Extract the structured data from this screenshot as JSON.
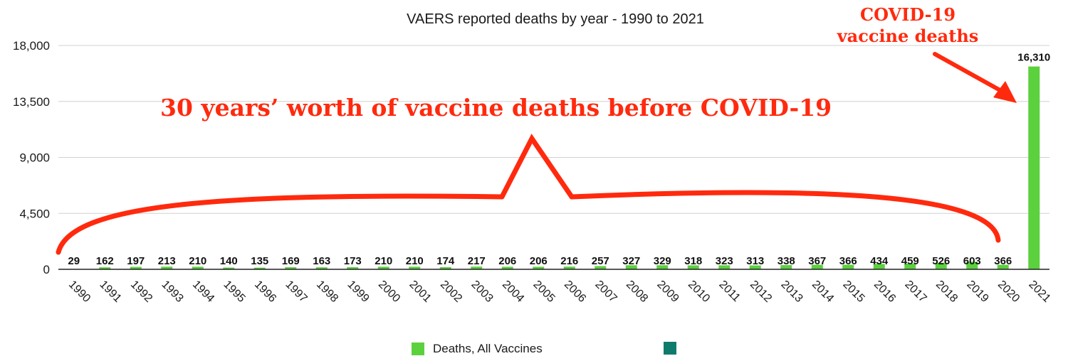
{
  "chart_data": {
    "type": "bar",
    "title": "VAERS reported deaths by year - 1990 to 2021",
    "xlabel": "",
    "ylabel": "",
    "ylim": [
      0,
      18000
    ],
    "yticks": [
      "0",
      "4,500",
      "9,000",
      "13,500",
      "18,000"
    ],
    "ytick_values": [
      0,
      4500,
      9000,
      13500,
      18000
    ],
    "grid": true,
    "categories": [
      "1990",
      "1991",
      "1992",
      "1993",
      "1994",
      "1995",
      "1996",
      "1997",
      "1998",
      "1999",
      "2000",
      "2001",
      "2002",
      "2003",
      "2004",
      "2005",
      "2006",
      "2007",
      "2008",
      "2009",
      "2010",
      "2011",
      "2012",
      "2013",
      "2014",
      "2015",
      "2016",
      "2017",
      "2018",
      "2019",
      "2020",
      "2021"
    ],
    "series": [
      {
        "name": "Deaths, All Vaccines",
        "color": "#5bd13d",
        "values": [
          29,
          162,
          197,
          213,
          210,
          140,
          135,
          169,
          163,
          173,
          210,
          210,
          174,
          217,
          206,
          206,
          216,
          257,
          327,
          329,
          318,
          323,
          313,
          338,
          367,
          366,
          434,
          459,
          526,
          603,
          366,
          16310
        ],
        "labels": [
          "29",
          "162",
          "197",
          "213",
          "210",
          "140",
          "135",
          "169",
          "163",
          "173",
          "210",
          "210",
          "174",
          "217",
          "206",
          "206",
          "216",
          "257",
          "327",
          "329",
          "318",
          "323",
          "313",
          "338",
          "367",
          "366",
          "434",
          "459",
          "526",
          "603",
          "366",
          "16,310"
        ]
      }
    ],
    "legend": {
      "position": "bottom",
      "entries": [
        {
          "label": "Deaths, All Vaccines",
          "color": "#5bd13d"
        },
        {
          "label": "",
          "color": "#0f7b6c"
        }
      ]
    },
    "annotations": {
      "main_text": "30 years’ worth of vaccine deaths before COVID-19",
      "covid_line1": "COVID-19",
      "covid_line2": "vaccine deaths",
      "color": "#ff2a0e"
    }
  }
}
